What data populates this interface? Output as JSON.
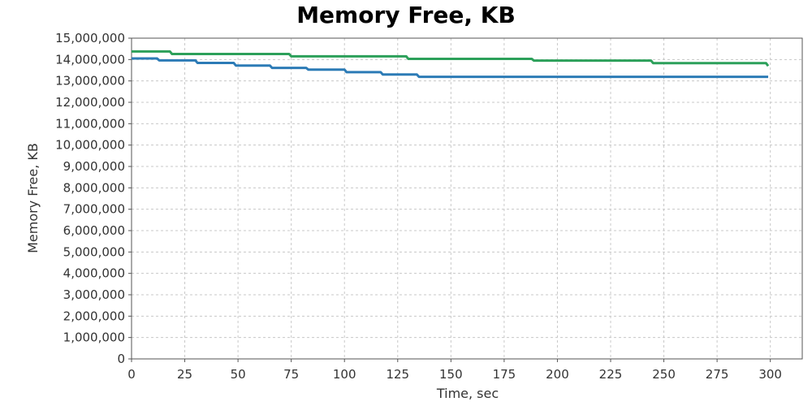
{
  "chart_data": {
    "type": "line",
    "title": "Memory Free, KB",
    "xlabel": "Time, sec",
    "ylabel": "Memory Free, KB",
    "xlim": [
      0,
      315
    ],
    "ylim": [
      0,
      15000000
    ],
    "xticks": [
      0,
      25,
      50,
      75,
      100,
      125,
      150,
      175,
      200,
      225,
      250,
      275,
      300
    ],
    "yticks": [
      0,
      1000000,
      2000000,
      3000000,
      4000000,
      5000000,
      6000000,
      7000000,
      8000000,
      9000000,
      10000000,
      11000000,
      12000000,
      13000000,
      14000000,
      15000000
    ],
    "xtick_labels": [
      "0",
      "25",
      "50",
      "75",
      "100",
      "125",
      "150",
      "175",
      "200",
      "225",
      "250",
      "275",
      "300"
    ],
    "ytick_labels": [
      "0",
      "1,000,000",
      "2,000,000",
      "3,000,000",
      "4,000,000",
      "5,000,000",
      "6,000,000",
      "7,000,000",
      "8,000,000",
      "9,000,000",
      "10,000,000",
      "11,000,000",
      "12,000,000",
      "13,000,000",
      "14,000,000",
      "15,000,000"
    ],
    "grid": true,
    "legend": "none",
    "series": [
      {
        "color": "#2ca05a",
        "points": [
          [
            0,
            14380000
          ],
          [
            18,
            14380000
          ],
          [
            19,
            14260000
          ],
          [
            74,
            14260000
          ],
          [
            75,
            14150000
          ],
          [
            129,
            14150000
          ],
          [
            130,
            14030000
          ],
          [
            188,
            14030000
          ],
          [
            189,
            13950000
          ],
          [
            244,
            13950000
          ],
          [
            245,
            13830000
          ],
          [
            298,
            13830000
          ],
          [
            299,
            13700000
          ]
        ]
      },
      {
        "color": "#2c7bb6",
        "points": [
          [
            0,
            14050000
          ],
          [
            12,
            14050000
          ],
          [
            13,
            13960000
          ],
          [
            30,
            13960000
          ],
          [
            31,
            13840000
          ],
          [
            48,
            13840000
          ],
          [
            49,
            13720000
          ],
          [
            65,
            13720000
          ],
          [
            66,
            13610000
          ],
          [
            82,
            13610000
          ],
          [
            83,
            13530000
          ],
          [
            100,
            13530000
          ],
          [
            101,
            13410000
          ],
          [
            117,
            13410000
          ],
          [
            118,
            13300000
          ],
          [
            134,
            13300000
          ],
          [
            135,
            13190000
          ],
          [
            299,
            13190000
          ]
        ]
      }
    ]
  }
}
